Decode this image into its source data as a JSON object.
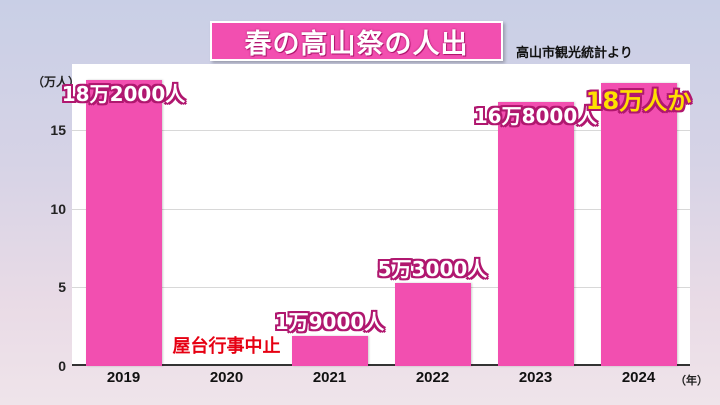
{
  "chart_data": {
    "type": "bar",
    "title": "春の高山祭の人出",
    "source": "高山市観光統計より",
    "ylabel": "（万人）",
    "xunit": "（年）",
    "ylim": [
      0,
      19.2
    ],
    "yticks": [
      0,
      5,
      10,
      15
    ],
    "categories": [
      "2019",
      "2020",
      "2021",
      "2022",
      "2023",
      "2024"
    ],
    "values": [
      18.2,
      0,
      1.9,
      5.3,
      16.8,
      18
    ],
    "data_labels": [
      "18万2000人",
      "屋台行事中止",
      "1万9000人",
      "5万3000人",
      "16万8000人",
      "18万人か"
    ],
    "grid": true,
    "colors": {
      "bar": "#f24fb0",
      "highlight_label": "#ffe000",
      "cancel_label": "#e60012"
    }
  }
}
